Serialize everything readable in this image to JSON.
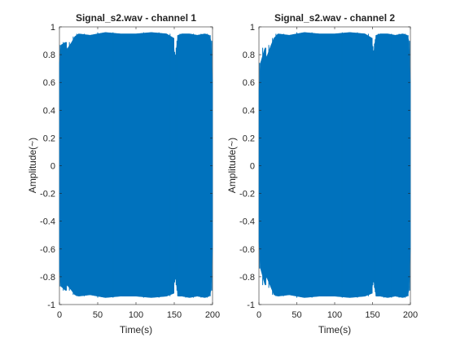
{
  "chart_data": [
    {
      "type": "line",
      "title": "Signal_s2.wav - channel 1",
      "xlabel": "Time(s)",
      "ylabel": "Amplitude(~)",
      "xlim": [
        0,
        200
      ],
      "ylim": [
        -1,
        1
      ],
      "xticks": [
        "0",
        "50",
        "100",
        "150",
        "200"
      ],
      "yticks": [
        "1",
        "0.8",
        "0.6",
        "0.4",
        "0.2",
        "0",
        "-0.2",
        "-0.4",
        "-0.6",
        "-0.8",
        "-1"
      ],
      "grid": false,
      "series": [
        {
          "color": "#0072BD",
          "x": [
            0,
            2,
            8,
            10,
            16,
            20,
            25,
            40,
            60,
            80,
            100,
            120,
            140,
            149,
            150,
            151,
            152,
            153,
            154,
            155,
            160,
            170,
            180,
            190,
            196,
            198,
            200
          ],
          "upper": [
            0.74,
            0.87,
            0.89,
            0.84,
            0.89,
            0.93,
            0.95,
            0.94,
            0.96,
            0.95,
            0.95,
            0.96,
            0.95,
            0.92,
            0.82,
            0.74,
            0.8,
            0.85,
            0.9,
            0.94,
            0.95,
            0.95,
            0.94,
            0.95,
            0.94,
            0.9,
            0.6
          ],
          "lower": [
            -0.76,
            -0.87,
            -0.9,
            -0.86,
            -0.9,
            -0.93,
            -0.94,
            -0.93,
            -0.95,
            -0.94,
            -0.94,
            -0.95,
            -0.94,
            -0.92,
            -0.84,
            -0.76,
            -0.82,
            -0.86,
            -0.9,
            -0.94,
            -0.94,
            -0.95,
            -0.94,
            -0.95,
            -0.94,
            -0.9,
            -0.6
          ]
        }
      ]
    },
    {
      "type": "line",
      "title": "Signal_s2.wav - channel 2",
      "xlabel": "Time(s)",
      "ylabel": "Amplitude(~)",
      "xlim": [
        0,
        200
      ],
      "ylim": [
        -1,
        1
      ],
      "xticks": [
        "0",
        "50",
        "100",
        "150",
        "200"
      ],
      "yticks": [
        "1",
        "0.8",
        "0.6",
        "0.4",
        "0.2",
        "0",
        "-0.2",
        "-0.4",
        "-0.6",
        "-0.8",
        "-1"
      ],
      "grid": false,
      "series": [
        {
          "color": "#0072BD",
          "x": [
            0,
            2,
            8,
            10,
            16,
            20,
            25,
            40,
            60,
            80,
            100,
            120,
            140,
            149,
            150,
            151,
            152,
            153,
            154,
            155,
            160,
            170,
            180,
            190,
            196,
            198,
            200
          ],
          "upper": [
            0.55,
            0.74,
            0.85,
            0.78,
            0.87,
            0.92,
            0.95,
            0.94,
            0.96,
            0.95,
            0.95,
            0.96,
            0.95,
            0.92,
            0.86,
            0.8,
            0.83,
            0.88,
            0.91,
            0.94,
            0.95,
            0.95,
            0.94,
            0.95,
            0.94,
            0.9,
            0.6
          ],
          "lower": [
            -0.55,
            -0.74,
            -0.86,
            -0.8,
            -0.88,
            -0.93,
            -0.94,
            -0.93,
            -0.95,
            -0.94,
            -0.94,
            -0.95,
            -0.94,
            -0.92,
            -0.86,
            -0.8,
            -0.84,
            -0.88,
            -0.91,
            -0.94,
            -0.94,
            -0.95,
            -0.94,
            -0.95,
            -0.94,
            -0.9,
            -0.6
          ]
        }
      ]
    }
  ]
}
